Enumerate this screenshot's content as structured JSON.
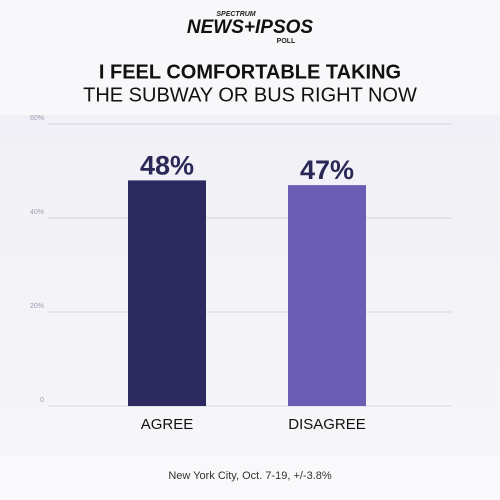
{
  "logo": {
    "top": "SPECTRUM",
    "main": "NEWS+IPSOS",
    "bottom": "POLL"
  },
  "chart_data": {
    "type": "bar",
    "title": "I FEEL COMFORTABLE TAKING",
    "subtitle": "THE SUBWAY OR BUS RIGHT NOW",
    "categories": [
      "AGREE",
      "DISAGREE"
    ],
    "values": [
      48,
      47
    ],
    "value_labels": [
      "48%",
      "47%"
    ],
    "colors": [
      "#2d2a5f",
      "#6c5db4"
    ],
    "ylim": [
      0,
      60
    ],
    "yticks": [
      0,
      {
        "value": 20,
        "label": "20%"
      },
      {
        "value": 40,
        "label": "40%"
      },
      {
        "value": 60,
        "label": "60%"
      }
    ],
    "grid": true,
    "note": "New York City, Oct. 7-19, +/-3.8%"
  }
}
